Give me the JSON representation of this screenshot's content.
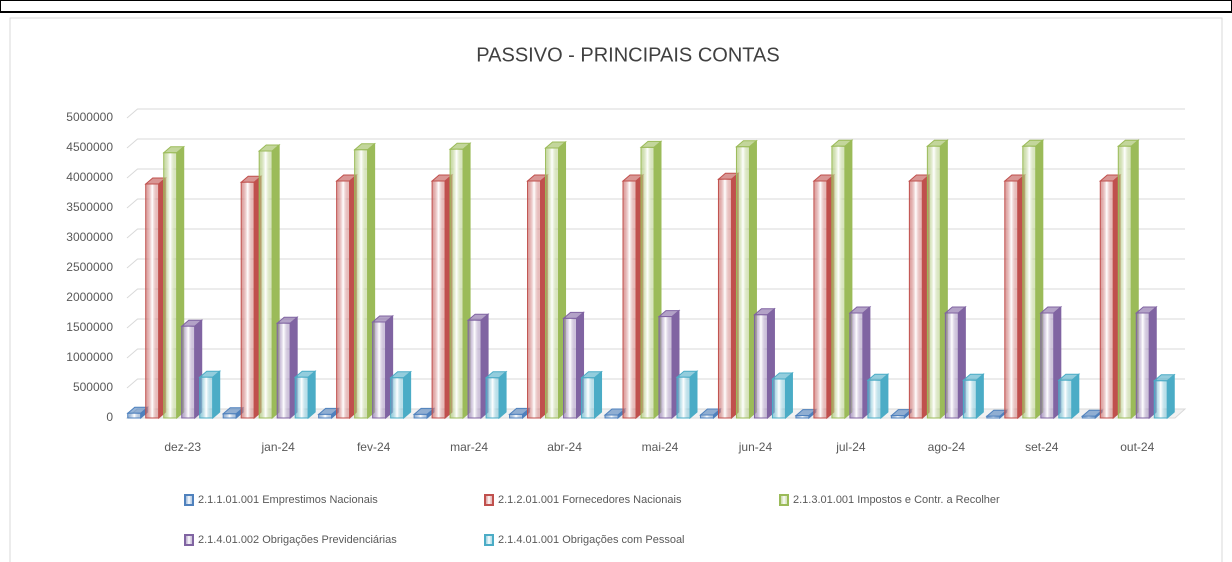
{
  "chart_data": {
    "type": "bar3d",
    "title": "PASSIVO - PRINCIPAIS CONTAS",
    "categories": [
      "dez-23",
      "jan-24",
      "fev-24",
      "mar-24",
      "abr-24",
      "mai-24",
      "jun-24",
      "jul-24",
      "ago-24",
      "set-24",
      "out-24"
    ],
    "series": [
      {
        "name": "2.1.1.01.001 Emprestimos Nacionais",
        "color": "#4f81bd",
        "values": [
          80000,
          70000,
          60000,
          60000,
          60000,
          50000,
          50000,
          40000,
          40000,
          30000,
          30000
        ]
      },
      {
        "name": "2.1.2.01.001 Fornecedores Nacionais",
        "color": "#c0504d",
        "values": [
          3900000,
          3930000,
          3950000,
          3950000,
          3950000,
          3950000,
          3980000,
          3950000,
          3950000,
          3950000,
          3950000
        ]
      },
      {
        "name": "2.1.3.01.001 Impostos e Contr. a Recolher",
        "color": "#9bbb59",
        "values": [
          4420000,
          4450000,
          4470000,
          4480000,
          4500000,
          4510000,
          4520000,
          4530000,
          4530000,
          4530000,
          4530000
        ]
      },
      {
        "name": "2.1.4.01.002 Obrigações Previdenciárias",
        "color": "#8064a2",
        "values": [
          1530000,
          1580000,
          1600000,
          1630000,
          1660000,
          1690000,
          1720000,
          1750000,
          1750000,
          1750000,
          1750000
        ]
      },
      {
        "name": "2.1.4.01.001 Obrigações com Pessoal",
        "color": "#4bacc6",
        "values": [
          680000,
          680000,
          670000,
          670000,
          670000,
          680000,
          650000,
          630000,
          630000,
          630000,
          620000
        ]
      }
    ],
    "ylim": [
      0,
      5000000
    ],
    "yticks": [
      0,
      500000,
      1000000,
      1500000,
      2000000,
      2500000,
      3000000,
      3500000,
      4000000,
      4500000,
      5000000
    ],
    "grid": true
  }
}
